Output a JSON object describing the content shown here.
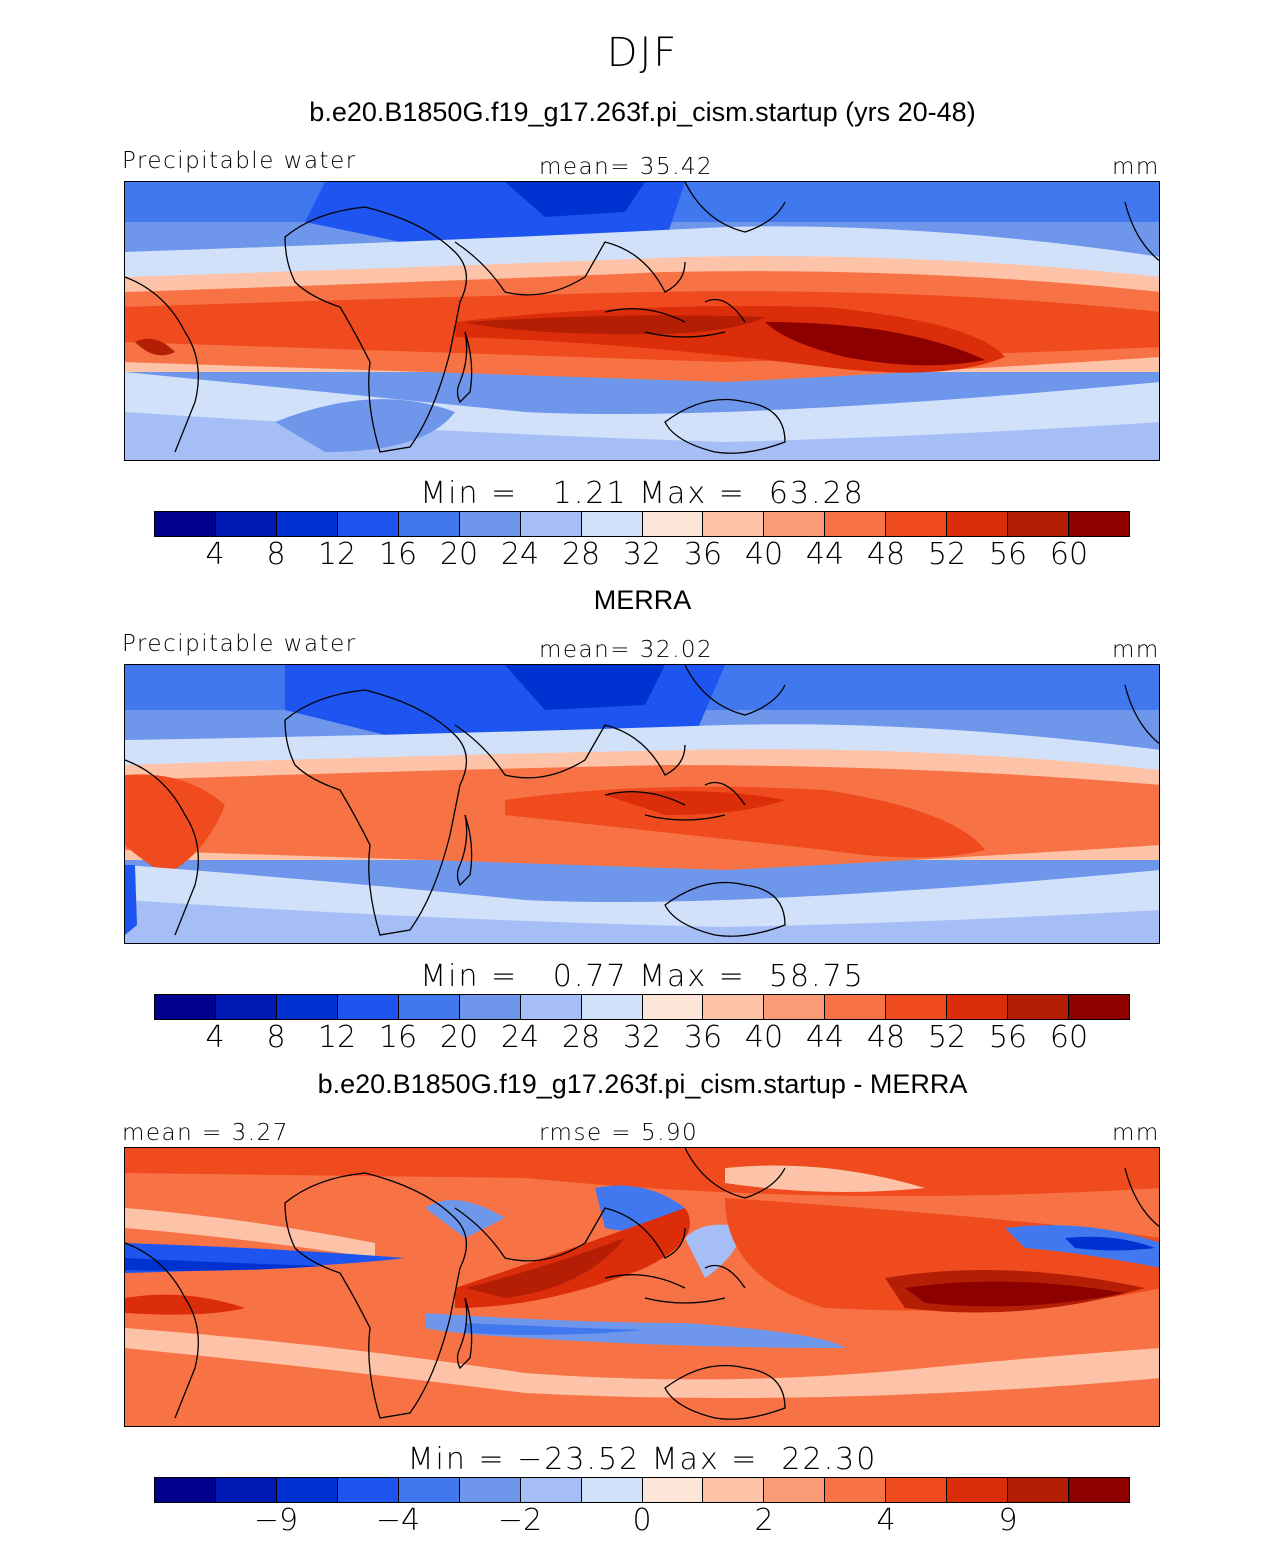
{
  "title": "DJF",
  "panels": [
    {
      "title": "b.e20.B1850G.f19_g17.263f.pi_cism.startup (yrs 20-48)",
      "left_label": "Precipitable water",
      "center_label": "mean=  35.42",
      "units": "mm",
      "minmax": "Min =   1.21 Max =  63.28",
      "colorbar_ticks": [
        "4",
        "8",
        "12",
        "16",
        "20",
        "24",
        "28",
        "32",
        "36",
        "40",
        "44",
        "48",
        "52",
        "56",
        "60"
      ]
    },
    {
      "title": "MERRA",
      "left_label": "Precipitable water",
      "center_label": "mean=  32.02",
      "units": "mm",
      "minmax": "Min =   0.77 Max =  58.75",
      "colorbar_ticks": [
        "4",
        "8",
        "12",
        "16",
        "20",
        "24",
        "28",
        "32",
        "36",
        "40",
        "44",
        "48",
        "52",
        "56",
        "60"
      ]
    },
    {
      "title": "b.e20.B1850G.f19_g17.263f.pi_cism.startup - MERRA",
      "left_label": "mean =   3.27",
      "center_label": "rmse =   5.90",
      "units": "mm",
      "minmax": "Min = −23.52 Max =  22.30",
      "colorbar_ticks": [
        "−9",
        "−4",
        "−2",
        "0",
        "2",
        "4",
        "9"
      ]
    }
  ],
  "colorbar_colors": [
    "#00008c",
    "#0019b4",
    "#0032d2",
    "#1e55f0",
    "#4178f0",
    "#6e96eb",
    "#a5bef5",
    "#d2e1fa",
    "#fde6d7",
    "#fcc3a8",
    "#fa9b78",
    "#f77346",
    "#f04b1e",
    "#dc2d0a",
    "#b41e05",
    "#8c0000"
  ]
}
